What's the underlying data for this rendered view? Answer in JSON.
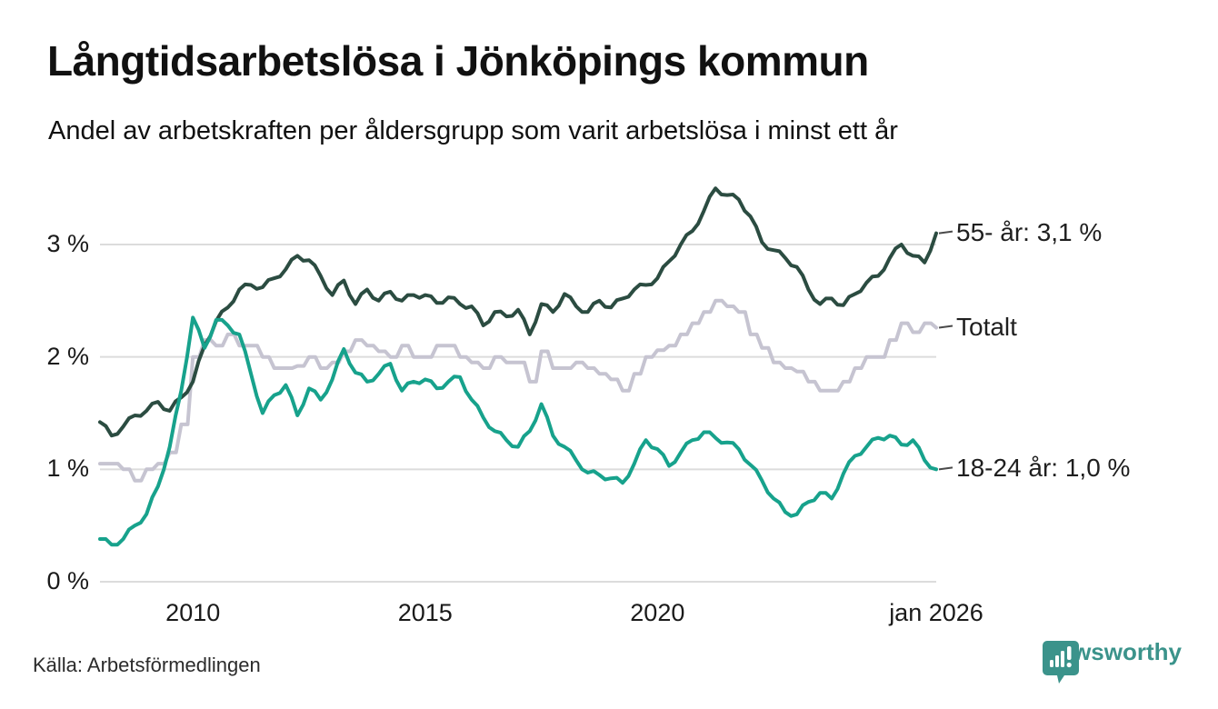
{
  "title": "Långtidsarbetslösa i Jönköpings kommun",
  "subtitle": "Andel av arbetskraften per åldersgrupp som varit arbetslösa i minst ett år",
  "source": "Källa: Arbetsförmedlingen",
  "brand": {
    "name": "Newsworthy",
    "color": "#3b938b"
  },
  "colors": {
    "grid": "#dcdcdc",
    "axis_text": "#1a1a1a",
    "end_label_dash": "#4a4a4a",
    "series_55": "#2b4c41",
    "series_total": "#c6c4d1",
    "series_18_24": "#17a28c"
  },
  "chart_data": {
    "type": "line",
    "title": "Långtidsarbetslösa i Jönköpings kommun",
    "subtitle": "Andel av arbetskraften per åldersgrupp som varit arbetslösa i minst ett år",
    "x_unit": "year",
    "x_start": 2008.0,
    "x_step": 0.25,
    "x_end": 2026.0,
    "ylim": [
      0,
      3.7
    ],
    "grid": "horizontal",
    "legend_position": "right-end-labels",
    "y_ticks": [
      {
        "value": 0,
        "label": "0 %"
      },
      {
        "value": 1,
        "label": "1 %"
      },
      {
        "value": 2,
        "label": "2 %"
      },
      {
        "value": 3,
        "label": "3 %"
      }
    ],
    "x_ticks": [
      {
        "value": 2010,
        "label": "2010"
      },
      {
        "value": 2015,
        "label": "2015"
      },
      {
        "value": 2020,
        "label": "2020"
      },
      {
        "value": 2026,
        "label": "jan 2026"
      }
    ],
    "series": [
      {
        "name": "Totalt",
        "end_label": "Totalt",
        "color": "#c6c4d1",
        "style": "step",
        "values": [
          1.05,
          1.05,
          1.0,
          0.9,
          1.0,
          1.05,
          1.15,
          1.4,
          2.0,
          2.15,
          2.1,
          2.2,
          2.1,
          2.1,
          2.0,
          1.9,
          1.9,
          1.92,
          2.0,
          1.9,
          1.95,
          2.05,
          2.15,
          2.1,
          2.05,
          2.0,
          2.1,
          2.0,
          2.0,
          2.1,
          2.1,
          2.0,
          1.95,
          1.9,
          2.0,
          1.95,
          1.95,
          1.78,
          2.05,
          1.9,
          1.9,
          1.95,
          1.9,
          1.85,
          1.8,
          1.7,
          1.85,
          2.0,
          2.06,
          2.1,
          2.2,
          2.3,
          2.4,
          2.5,
          2.45,
          2.4,
          2.2,
          2.08,
          1.95,
          1.9,
          1.87,
          1.78,
          1.7,
          1.7,
          1.78,
          1.9,
          2.0,
          2.0,
          2.15,
          2.3,
          2.22,
          2.3,
          2.26
        ]
      },
      {
        "name": "55- år",
        "end_label": "55- år: 3,1 %",
        "color": "#2b4c41",
        "style": "smooth",
        "values": [
          1.42,
          1.3,
          1.38,
          1.48,
          1.52,
          1.6,
          1.52,
          1.64,
          1.78,
          2.1,
          2.32,
          2.44,
          2.6,
          2.64,
          2.62,
          2.7,
          2.78,
          2.9,
          2.86,
          2.72,
          2.55,
          2.68,
          2.47,
          2.6,
          2.5,
          2.58,
          2.5,
          2.55,
          2.55,
          2.48,
          2.53,
          2.47,
          2.45,
          2.28,
          2.4,
          2.36,
          2.42,
          2.2,
          2.47,
          2.4,
          2.56,
          2.45,
          2.4,
          2.5,
          2.44,
          2.52,
          2.6,
          2.64,
          2.7,
          2.85,
          3.0,
          3.12,
          3.3,
          3.5,
          3.44,
          3.4,
          3.25,
          3.02,
          2.95,
          2.88,
          2.8,
          2.6,
          2.47,
          2.52,
          2.46,
          2.56,
          2.66,
          2.72,
          2.88,
          3.0,
          2.9,
          2.84,
          3.1
        ]
      },
      {
        "name": "18-24 år",
        "end_label": "18-24 år: 1,0 %",
        "color": "#17a28c",
        "style": "smooth",
        "values": [
          0.38,
          0.33,
          0.38,
          0.5,
          0.6,
          0.85,
          1.2,
          1.7,
          2.35,
          2.08,
          2.33,
          2.28,
          2.2,
          1.85,
          1.5,
          1.66,
          1.75,
          1.48,
          1.72,
          1.62,
          1.8,
          2.07,
          1.86,
          1.78,
          1.85,
          1.94,
          1.7,
          1.78,
          1.8,
          1.72,
          1.78,
          1.82,
          1.62,
          1.46,
          1.34,
          1.26,
          1.2,
          1.34,
          1.58,
          1.3,
          1.2,
          1.08,
          0.97,
          0.95,
          0.92,
          0.88,
          1.05,
          1.26,
          1.18,
          1.03,
          1.15,
          1.26,
          1.33,
          1.28,
          1.24,
          1.18,
          1.04,
          0.9,
          0.74,
          0.62,
          0.6,
          0.71,
          0.79,
          0.74,
          0.96,
          1.12,
          1.2,
          1.28,
          1.3,
          1.22,
          1.26,
          1.08,
          1.0
        ]
      }
    ]
  }
}
